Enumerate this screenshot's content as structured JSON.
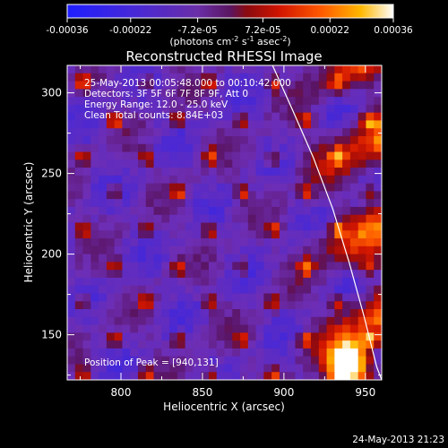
{
  "chart_data": {
    "type": "heatmap",
    "title": "Reconstructed RHESSI Image",
    "xlabel": "Heliocentric X (arcsec)",
    "ylabel": "Heliocentric Y (arcsec)",
    "xlim": [
      767,
      960
    ],
    "ylim": [
      122,
      317
    ],
    "xticks": [
      800,
      850,
      900,
      950
    ],
    "yticks": [
      150,
      200,
      250,
      300
    ],
    "colorbar": {
      "ticks": [
        "-0.00036",
        "-0.00022",
        "-7.2e-05",
        "7.2e-05",
        "0.00022",
        "0.00036"
      ],
      "tick_values": [
        -0.00036,
        -0.00022,
        -7.2e-05,
        7.2e-05,
        0.00022,
        0.00036
      ],
      "range": [
        -0.00036,
        0.00036
      ],
      "units_label": "(photons cm⁻² s⁻¹ asec⁻²)",
      "units_parts": [
        "(photons cm",
        "-2",
        " s",
        "-1",
        " asec",
        "-2",
        ")"
      ]
    },
    "annotations": [
      "25-May-2013 00:05:48.000 to 00:10:42.000",
      "Detectors: 3F 5F 6F 7F 8F 9F, Att 0",
      "Energy Range: 12.0 - 25.0 keV",
      "Clean   Total counts: 8.84E+03"
    ],
    "peak_label": "Position of Peak = [940,131]",
    "peak": [
      940,
      131
    ],
    "limb": [
      [
        893,
        317
      ],
      [
        905,
        290
      ],
      [
        918,
        260
      ],
      [
        930,
        228
      ],
      [
        940,
        195
      ],
      [
        949,
        162
      ],
      [
        957,
        130
      ],
      [
        960,
        122
      ]
    ],
    "grid": false
  },
  "footer": {
    "timestamp": "24-May-2013 21:23"
  }
}
